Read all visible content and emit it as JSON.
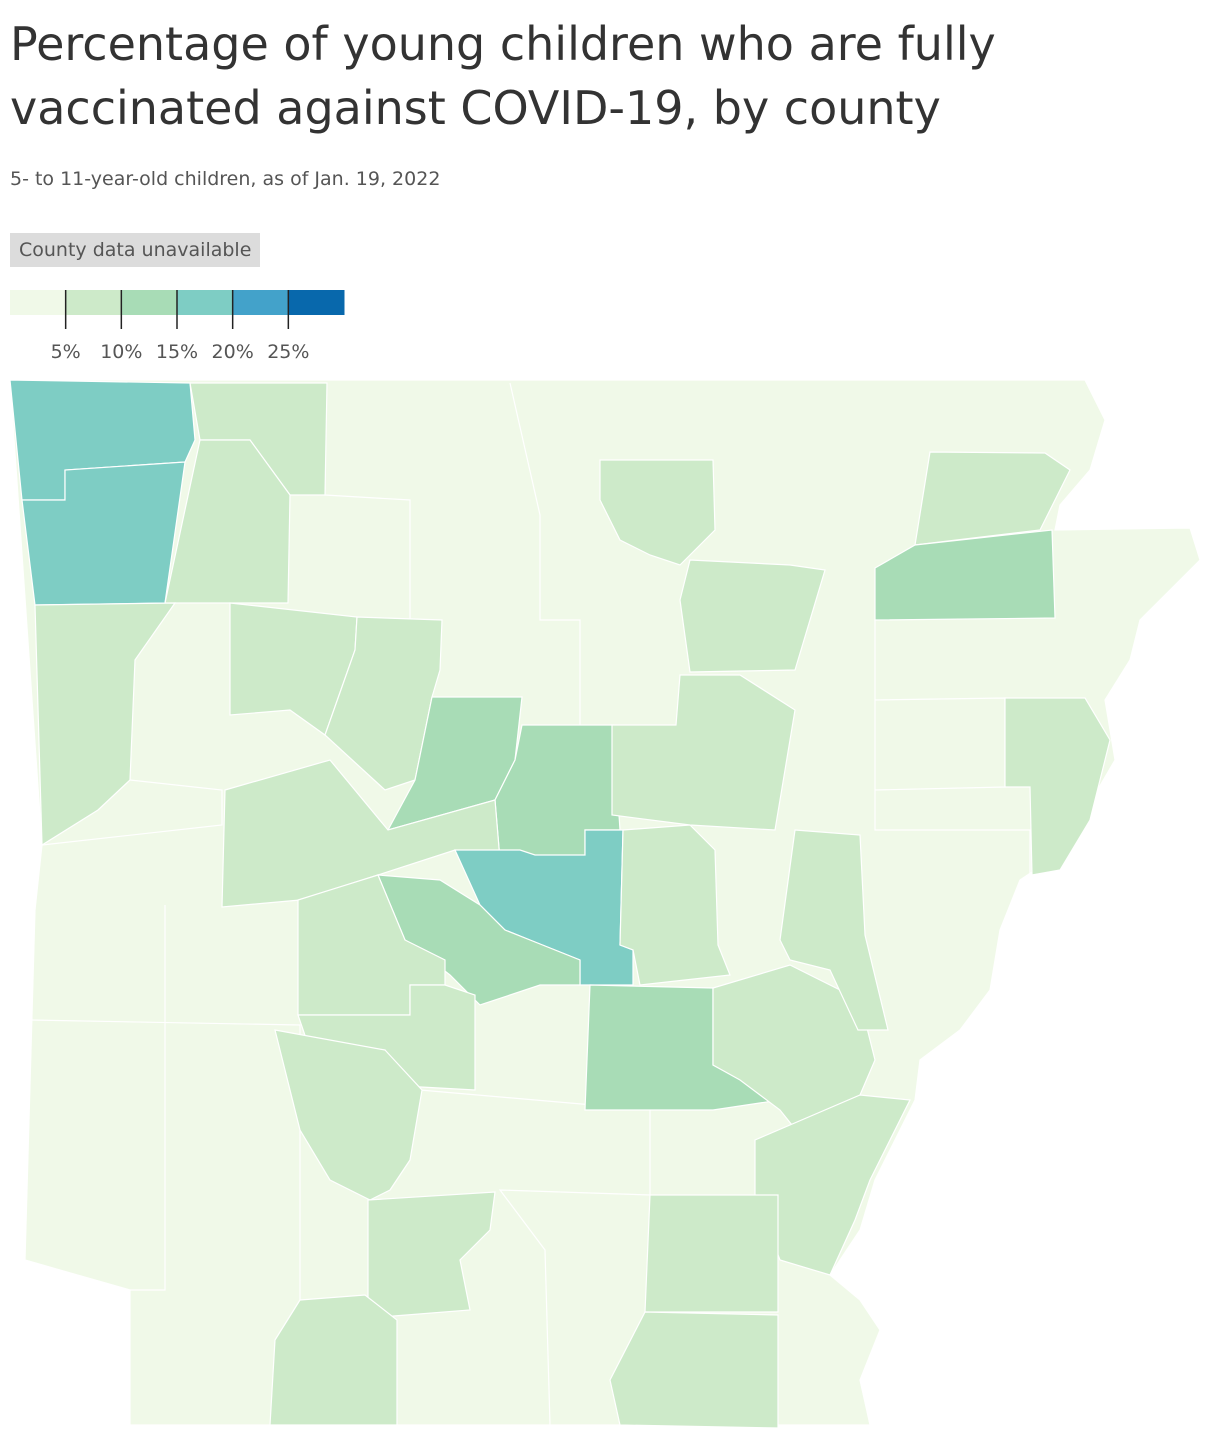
{
  "header": {
    "title": "Percentage of young children who are fully vaccinated against COVID-19, by county",
    "subtitle": "5- to 11-year-old children, as of Jan. 19, 2022"
  },
  "legend": {
    "unavailable_label": "County data unavailable",
    "colors": [
      "#f0f9e8",
      "#cdeac9",
      "#a8dcb6",
      "#7ecdc4",
      "#43a2ca",
      "#0868ac"
    ],
    "xlim": [
      0,
      30
    ],
    "xticks": [
      {
        "value": 5,
        "label": "5%"
      },
      {
        "value": 10,
        "label": "10%"
      },
      {
        "value": 15,
        "label": "15%"
      },
      {
        "value": 20,
        "label": "20%"
      },
      {
        "value": 25,
        "label": "25%"
      }
    ]
  }
}
